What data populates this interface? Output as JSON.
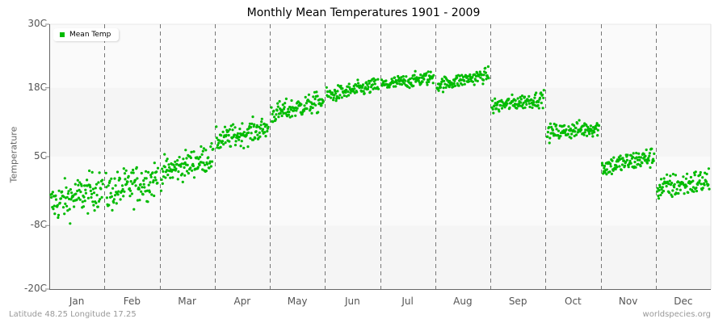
{
  "chart_data": {
    "type": "scatter",
    "title": "Monthly Mean Temperatures 1901 - 2009",
    "xlabel": "",
    "ylabel": "Temperature",
    "ylim": [
      -20,
      30
    ],
    "yticks": [
      "30C",
      "18C",
      "5C",
      "-8C",
      "-20C"
    ],
    "ytick_values": [
      30,
      18,
      5,
      -8,
      -20
    ],
    "categories": [
      "Jan",
      "Feb",
      "Mar",
      "Apr",
      "May",
      "Jun",
      "Jul",
      "Aug",
      "Sep",
      "Oct",
      "Nov",
      "Dec"
    ],
    "legend": [
      {
        "name": "Mean Temp",
        "color": "#00bb00"
      }
    ],
    "legend_position": "top-left",
    "grid": "vertical dashed month separators, alternating horizontal bands",
    "series": [
      {
        "name": "Mean Temp",
        "months": [
          {
            "month": "Jan",
            "start": -4.0,
            "end": -1.0,
            "spread": 3.0,
            "min": -12,
            "max": 3.5
          },
          {
            "month": "Feb",
            "start": -2.0,
            "end": 1.0,
            "spread": 3.0,
            "min": -8,
            "max": 5
          },
          {
            "month": "Mar",
            "start": 2.0,
            "end": 5.0,
            "spread": 2.2,
            "min": -2,
            "max": 8.5
          },
          {
            "month": "Apr",
            "start": 8.0,
            "end": 10.5,
            "spread": 1.8,
            "min": 4.5,
            "max": 13
          },
          {
            "month": "May",
            "start": 13.0,
            "end": 15.5,
            "spread": 1.6,
            "min": 9,
            "max": 18.5
          },
          {
            "month": "Jun",
            "start": 16.5,
            "end": 18.5,
            "spread": 1.2,
            "min": 13.5,
            "max": 20.5
          },
          {
            "month": "Jul",
            "start": 18.5,
            "end": 20.0,
            "spread": 1.1,
            "min": 16,
            "max": 22.5
          },
          {
            "month": "Aug",
            "start": 18.5,
            "end": 20.5,
            "spread": 1.1,
            "min": 16.5,
            "max": 23.5
          },
          {
            "month": "Sep",
            "start": 14.5,
            "end": 16.0,
            "spread": 1.2,
            "min": 11,
            "max": 19
          },
          {
            "month": "Oct",
            "start": 9.5,
            "end": 10.5,
            "spread": 1.3,
            "min": 6,
            "max": 13.5
          },
          {
            "month": "Nov",
            "start": 3.0,
            "end": 5.0,
            "spread": 1.6,
            "min": -1,
            "max": 7.5
          },
          {
            "month": "Dec",
            "start": -1.0,
            "end": 0.5,
            "spread": 2.0,
            "min": -6.5,
            "max": 3.5
          }
        ],
        "points_per_month": 109
      }
    ]
  },
  "footer": {
    "left": "Latitude 48.25 Longitude 17.25",
    "right": "worldspecies.org"
  }
}
